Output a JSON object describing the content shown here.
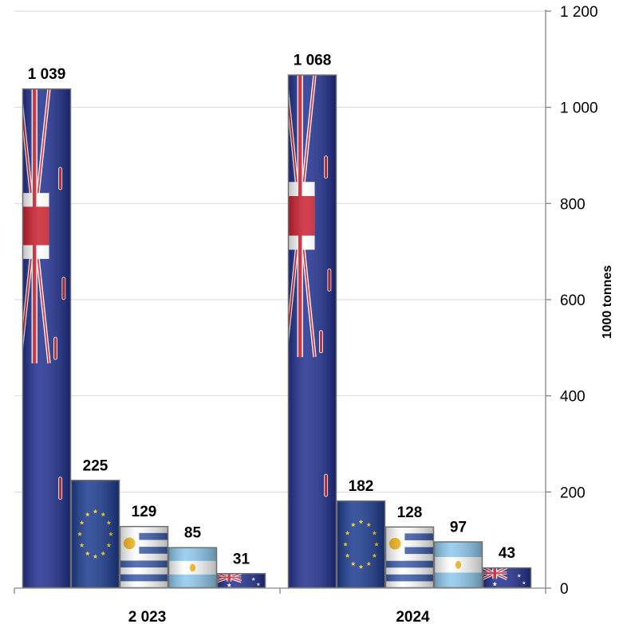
{
  "chart_data": {
    "type": "bar",
    "categories": [
      "2 023",
      "2024"
    ],
    "series": [
      {
        "flag": "new-zealand",
        "values": [
          1039,
          1068
        ],
        "labels": [
          "1 039",
          "1 068"
        ]
      },
      {
        "flag": "european-union",
        "values": [
          225,
          182
        ],
        "labels": [
          "225",
          "182"
        ]
      },
      {
        "flag": "uruguay",
        "values": [
          129,
          128
        ],
        "labels": [
          "129",
          "128"
        ]
      },
      {
        "flag": "argentina",
        "values": [
          85,
          97
        ],
        "labels": [
          "85",
          "97"
        ]
      },
      {
        "flag": "australia",
        "values": [
          31,
          43
        ],
        "labels": [
          "31",
          "43"
        ]
      }
    ],
    "ylabel": "1000 tonnes",
    "ylim": [
      0,
      1200
    ],
    "yticks": [
      {
        "value": 0,
        "label": "0"
      },
      {
        "value": 200,
        "label": "200"
      },
      {
        "value": 400,
        "label": "400"
      },
      {
        "value": 600,
        "label": "600"
      },
      {
        "value": 800,
        "label": "800"
      },
      {
        "value": 1000,
        "label": "1 000"
      },
      {
        "value": 1200,
        "label": "1 200"
      }
    ],
    "y_axis_position": "right",
    "grid": true,
    "legend": "none",
    "colors": {
      "grid": "#d9d9d9",
      "axis": "#868686",
      "flag_blue": "#1f2f8f",
      "flag_red": "#cc1f2f",
      "eu_blue": "#1a3a8e",
      "eu_gold": "#f7d117",
      "uruguay_blue": "#3a5aa8",
      "argentina_blue": "#8cc8ec",
      "sun": "#f2b416"
    }
  }
}
